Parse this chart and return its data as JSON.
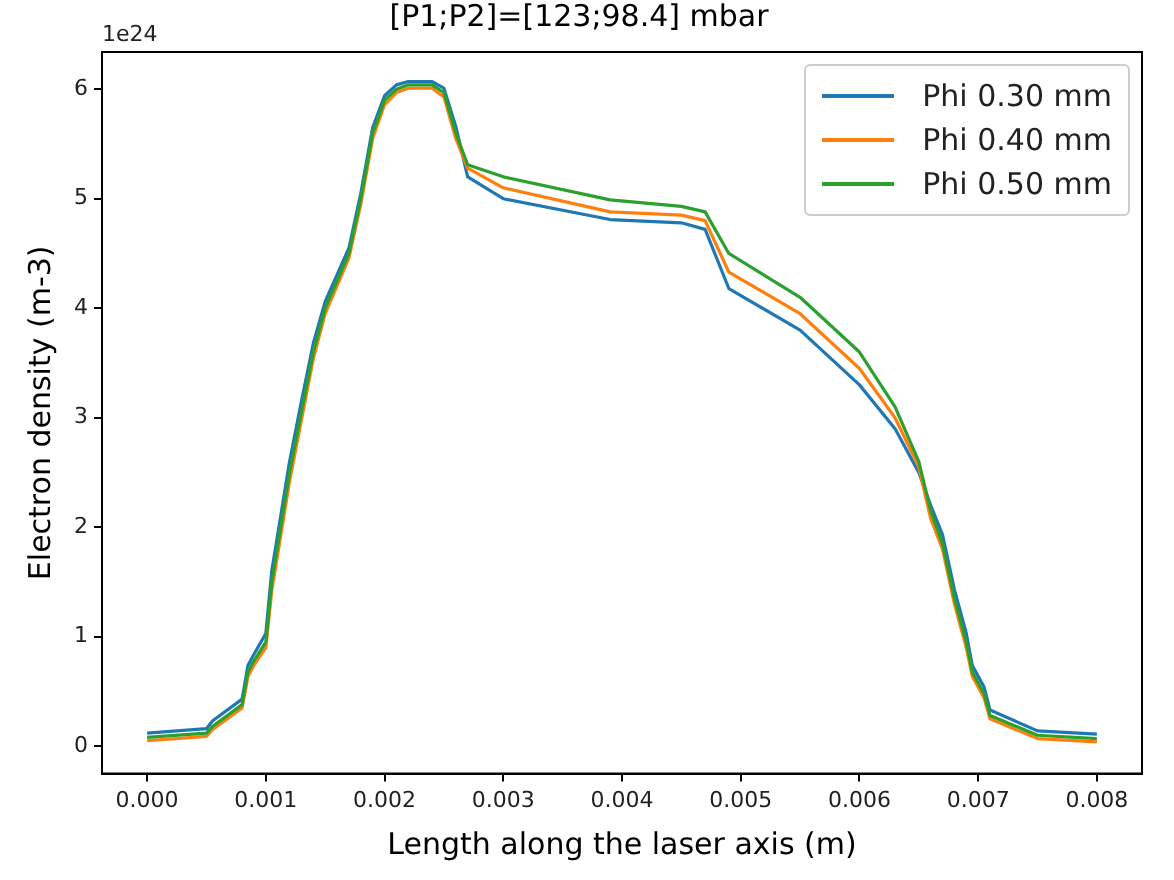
{
  "chart_data": {
    "type": "line",
    "title": "[P1;P2]=[123;98.4] mbar",
    "xlabel": "Length along the laser axis (m)",
    "ylabel": "Electron density (m-3)",
    "annotations": [
      "1e24"
    ],
    "xlim": [
      -0.00038,
      0.00838
    ],
    "ylim": [
      -0.25,
      6.34
    ],
    "xticks": [
      {
        "value": 0,
        "label": "0.000"
      },
      {
        "value": 0.001,
        "label": "0.001"
      },
      {
        "value": 0.002,
        "label": "0.002"
      },
      {
        "value": 0.003,
        "label": "0.003"
      },
      {
        "value": 0.004,
        "label": "0.004"
      },
      {
        "value": 0.005,
        "label": "0.005"
      },
      {
        "value": 0.006,
        "label": "0.006"
      },
      {
        "value": 0.007,
        "label": "0.007"
      },
      {
        "value": 0.008,
        "label": "0.008"
      }
    ],
    "yticks": [
      0,
      1,
      2,
      3,
      4,
      5,
      6
    ],
    "grid": false,
    "legend": "top right",
    "marker": "none",
    "line_style": "solid",
    "x": [
      0,
      0.0005,
      0.00055,
      0.0008,
      0.00085,
      0.0009,
      0.001,
      0.00105,
      0.0012,
      0.0013,
      0.0014,
      0.0015,
      0.0017,
      0.0018,
      0.0019,
      0.002,
      0.0021,
      0.0022,
      0.0024,
      0.0025,
      0.0026,
      0.0027,
      0.003,
      0.0039,
      0.0045,
      0.0047,
      0.0049,
      0.0055,
      0.006,
      0.0063,
      0.0065,
      0.0066,
      0.0067,
      0.0068,
      0.0069,
      0.00695,
      0.007,
      0.00705,
      0.0071,
      0.0075,
      0.008
    ],
    "series": [
      {
        "name": "Phi 0.30 mm",
        "color": "#1f77b4",
        "values": [
          0.12,
          0.16,
          0.23,
          0.43,
          0.74,
          0.84,
          1.03,
          1.6,
          2.6,
          3.15,
          3.68,
          4.06,
          4.55,
          5.05,
          5.65,
          5.94,
          6.04,
          6.07,
          6.07,
          6.01,
          5.66,
          5.2,
          5.0,
          4.81,
          4.78,
          4.72,
          4.18,
          3.8,
          3.3,
          2.9,
          2.5,
          2.2,
          1.93,
          1.43,
          1.03,
          0.74,
          0.64,
          0.54,
          0.33,
          0.14,
          0.11
        ]
      },
      {
        "name": "Phi 0.40 mm",
        "color": "#ff7f0e",
        "values": [
          0.05,
          0.09,
          0.15,
          0.35,
          0.64,
          0.74,
          0.9,
          1.42,
          2.42,
          2.98,
          3.54,
          3.95,
          4.46,
          4.95,
          5.55,
          5.86,
          5.97,
          6.01,
          6.01,
          5.93,
          5.55,
          5.28,
          5.1,
          4.88,
          4.85,
          4.8,
          4.33,
          3.95,
          3.45,
          3.0,
          2.55,
          2.08,
          1.8,
          1.3,
          0.9,
          0.64,
          0.54,
          0.44,
          0.25,
          0.07,
          0.04
        ]
      },
      {
        "name": "Phi 0.50 mm",
        "color": "#2ca02c",
        "values": [
          0.08,
          0.12,
          0.18,
          0.38,
          0.68,
          0.78,
          0.95,
          1.5,
          2.5,
          3.05,
          3.6,
          4.0,
          4.5,
          5.0,
          5.6,
          5.9,
          6.0,
          6.04,
          6.04,
          5.97,
          5.6,
          5.31,
          5.2,
          4.99,
          4.93,
          4.88,
          4.5,
          4.1,
          3.6,
          3.1,
          2.6,
          2.15,
          1.85,
          1.35,
          0.95,
          0.68,
          0.58,
          0.48,
          0.28,
          0.1,
          0.07
        ]
      }
    ]
  }
}
